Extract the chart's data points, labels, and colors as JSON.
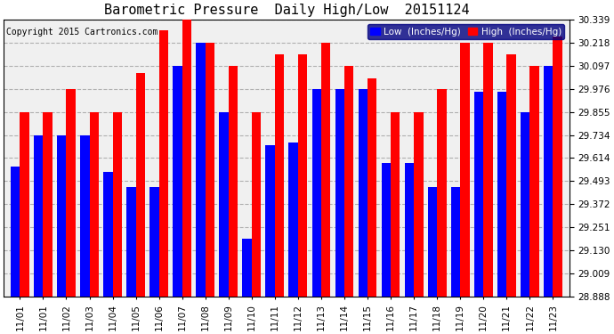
{
  "title": "Barometric Pressure  Daily High/Low  20151124",
  "copyright": "Copyright 2015 Cartronics.com",
  "legend_low": "Low  (Inches/Hg)",
  "legend_high": "High  (Inches/Hg)",
  "ylabel_right_ticks": [
    28.888,
    29.009,
    29.13,
    29.251,
    29.372,
    29.493,
    29.614,
    29.734,
    29.855,
    29.976,
    30.097,
    30.218,
    30.339
  ],
  "dates": [
    "11/01",
    "11/01",
    "11/02",
    "11/03",
    "11/04",
    "11/05",
    "11/06",
    "11/07",
    "11/08",
    "11/09",
    "11/10",
    "11/11",
    "11/12",
    "11/13",
    "11/14",
    "11/15",
    "11/16",
    "11/17",
    "11/18",
    "11/19",
    "11/20",
    "11/21",
    "11/22",
    "11/23"
  ],
  "low_values": [
    29.57,
    29.734,
    29.734,
    29.734,
    29.54,
    29.46,
    29.46,
    30.097,
    30.218,
    29.855,
    29.19,
    29.68,
    29.695,
    29.976,
    29.976,
    29.976,
    29.59,
    29.59,
    29.46,
    29.46,
    29.96,
    29.96,
    29.855,
    30.097
  ],
  "high_values": [
    29.855,
    29.855,
    29.976,
    29.855,
    29.855,
    30.06,
    30.28,
    30.339,
    30.218,
    30.097,
    29.855,
    30.157,
    30.157,
    30.218,
    30.097,
    30.03,
    29.855,
    29.855,
    29.976,
    30.218,
    30.218,
    30.157,
    30.097,
    30.25
  ],
  "low_color": "#0000ff",
  "high_color": "#ff0000",
  "bg_color": "#ffffff",
  "plot_bg_color": "#f0f0f0",
  "grid_color": "#b0b0b0",
  "ylim_min": 28.888,
  "ylim_max": 30.339,
  "bar_width": 0.4,
  "title_fontsize": 11,
  "tick_fontsize": 7.5,
  "copyright_fontsize": 7
}
